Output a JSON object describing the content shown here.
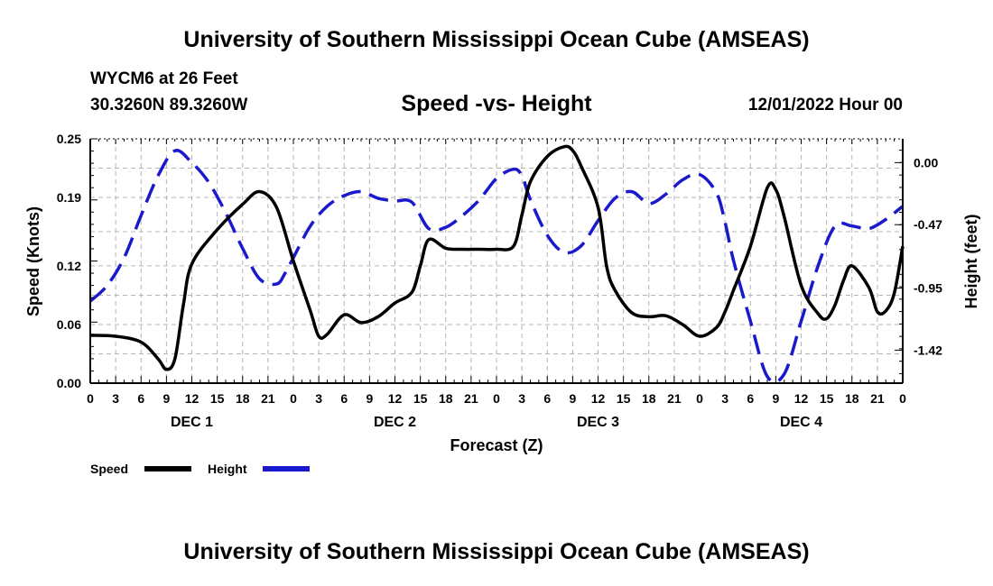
{
  "header": {
    "title_top": "University of Southern Mississippi Ocean Cube (AMSEAS)",
    "station": "WYCM6 at 26 Feet",
    "coords": "30.3260N  89.3260W",
    "chart_title": "Speed -vs- Height",
    "datetime": "12/01/2022 Hour 00"
  },
  "footer": {
    "title_bottom": "University of Southern Mississippi Ocean Cube (AMSEAS)"
  },
  "legend": {
    "speed_label": "Speed",
    "height_label": "Height"
  },
  "colors": {
    "speed": "#000000",
    "height": "#1a1acc",
    "grid": "#b4b4b4"
  },
  "chart_data": {
    "type": "line",
    "title": "Speed -vs- Height",
    "xlabel": "Forecast (Z)",
    "ylabel": "Speed (Knots)",
    "y2label": "Height (feet)",
    "xlim": [
      0,
      96
    ],
    "ylim": [
      0,
      0.25
    ],
    "y2lim": [
      -1.67,
      0.18
    ],
    "x_tick_labels": [
      "0",
      "3",
      "6",
      "9",
      "12",
      "15",
      "18",
      "21",
      "0",
      "3",
      "6",
      "9",
      "12",
      "15",
      "18",
      "21",
      "0",
      "3",
      "6",
      "9",
      "12",
      "15",
      "18",
      "21",
      "0",
      "3",
      "6",
      "9",
      "12",
      "15",
      "18",
      "21",
      "0"
    ],
    "day_labels": [
      {
        "label": "DEC 1",
        "x": 12
      },
      {
        "label": "DEC 2",
        "x": 36
      },
      {
        "label": "DEC 3",
        "x": 60
      },
      {
        "label": "DEC 4",
        "x": 84
      }
    ],
    "y_ticks": [
      0.0,
      0.06,
      0.12,
      0.19,
      0.25
    ],
    "y_tick_labels": [
      "0.00",
      "0.06",
      "0.12",
      "0.19",
      "0.25"
    ],
    "y2_ticks": [
      0.0,
      -0.47,
      -0.95,
      -1.42
    ],
    "y2_tick_labels": [
      "0.00",
      "-0.47",
      "-0.95",
      "-1.42"
    ],
    "grid": true,
    "series": [
      {
        "name": "Speed",
        "axis": "left",
        "style": "solid",
        "x": [
          0,
          3,
          6,
          8,
          9,
          10,
          11,
          12,
          15,
          18,
          20,
          22,
          24,
          26,
          27,
          28,
          30,
          32,
          34,
          36,
          38,
          39,
          40,
          42,
          44,
          46,
          48,
          50,
          51,
          52,
          54,
          56,
          57,
          58,
          60,
          61,
          62,
          64,
          66,
          68,
          70,
          72,
          74,
          75,
          76,
          78,
          80,
          81,
          82,
          84,
          86,
          87,
          88,
          89,
          90,
          92,
          93,
          94,
          95,
          96
        ],
        "values": [
          0.049,
          0.048,
          0.042,
          0.025,
          0.014,
          0.025,
          0.08,
          0.122,
          0.157,
          0.183,
          0.196,
          0.18,
          0.125,
          0.074,
          0.048,
          0.05,
          0.07,
          0.062,
          0.068,
          0.082,
          0.093,
          0.12,
          0.147,
          0.138,
          0.137,
          0.137,
          0.137,
          0.14,
          0.172,
          0.206,
          0.232,
          0.242,
          0.238,
          0.222,
          0.18,
          0.12,
          0.095,
          0.072,
          0.068,
          0.069,
          0.06,
          0.048,
          0.057,
          0.073,
          0.095,
          0.14,
          0.2,
          0.198,
          0.17,
          0.1,
          0.071,
          0.066,
          0.08,
          0.105,
          0.12,
          0.098,
          0.073,
          0.074,
          0.092,
          0.14
        ]
      },
      {
        "name": "Height",
        "axis": "right",
        "style": "dashed",
        "x": [
          0,
          2,
          4,
          6,
          8,
          10,
          12,
          14,
          16,
          18,
          20,
          22,
          23,
          24,
          26,
          28,
          30,
          32,
          34,
          36,
          38,
          40,
          42,
          44,
          46,
          48,
          50,
          51,
          52,
          54,
          56,
          58,
          60,
          62,
          64,
          66,
          68,
          70,
          72,
          74,
          75,
          76,
          78,
          80,
          82,
          84,
          86,
          88,
          90,
          92,
          94,
          96
        ],
        "values": [
          -1.05,
          -0.93,
          -0.72,
          -0.4,
          -0.1,
          0.09,
          0.0,
          -0.15,
          -0.38,
          -0.65,
          -0.88,
          -0.92,
          -0.84,
          -0.72,
          -0.48,
          -0.33,
          -0.25,
          -0.22,
          -0.27,
          -0.29,
          -0.3,
          -0.5,
          -0.49,
          -0.4,
          -0.28,
          -0.12,
          -0.05,
          -0.1,
          -0.28,
          -0.55,
          -0.68,
          -0.63,
          -0.44,
          -0.27,
          -0.22,
          -0.31,
          -0.24,
          -0.13,
          -0.09,
          -0.23,
          -0.45,
          -0.74,
          -1.2,
          -1.62,
          -1.6,
          -1.2,
          -0.78,
          -0.48,
          -0.48,
          -0.5,
          -0.43,
          -0.33
        ]
      }
    ]
  }
}
